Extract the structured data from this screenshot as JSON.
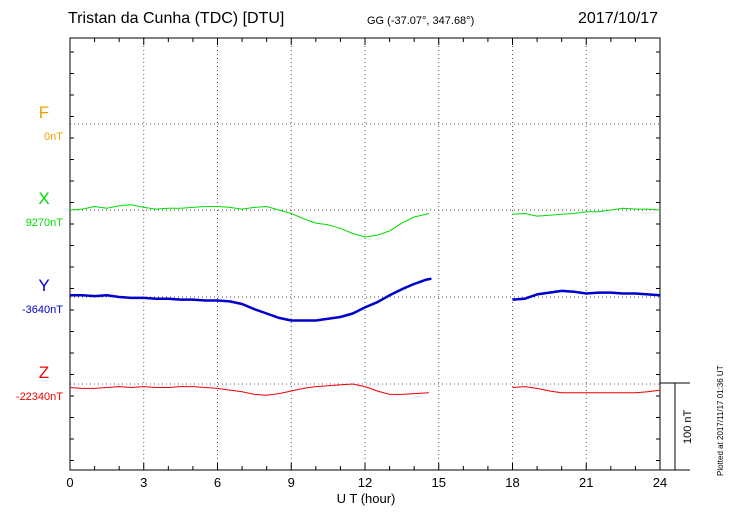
{
  "header": {
    "station": "Tristan da Cunha (TDC)  [DTU]",
    "coords": "GG (-37.07°, 347.68°)",
    "date": "2017/10/17"
  },
  "footer": {
    "plotted": "Plotted at 2017/11/17 01:36 UT",
    "scale": "100 nT"
  },
  "chart_data": {
    "type": "line",
    "xlabel": "U T (hour)",
    "xlim": [
      0,
      24
    ],
    "xticks": [
      "0",
      "3",
      "6",
      "9",
      "12",
      "15",
      "18",
      "21",
      "24"
    ],
    "grid": true,
    "scale_bar_nT": 100,
    "data_gap_hours": [
      14.7,
      17.9
    ],
    "series": [
      {
        "name": "F",
        "baseline": "0nT",
        "color": "#f5a000",
        "points": []
      },
      {
        "name": "X",
        "baseline": "9270nT",
        "color": "#00dd00",
        "stroke": 1,
        "points": [
          [
            0,
            9270
          ],
          [
            0.5,
            9271
          ],
          [
            1,
            9274
          ],
          [
            1.5,
            9272
          ],
          [
            2,
            9275
          ],
          [
            2.5,
            9276
          ],
          [
            3,
            9273
          ],
          [
            3.5,
            9271
          ],
          [
            4,
            9272
          ],
          [
            4.5,
            9272
          ],
          [
            5,
            9273
          ],
          [
            5.5,
            9274
          ],
          [
            6,
            9274
          ],
          [
            6.5,
            9273
          ],
          [
            7,
            9271
          ],
          [
            7.5,
            9273
          ],
          [
            8,
            9274
          ],
          [
            8.5,
            9270
          ],
          [
            9,
            9266
          ],
          [
            9.5,
            9260
          ],
          [
            10,
            9255
          ],
          [
            10.5,
            9253
          ],
          [
            11,
            9249
          ],
          [
            11.5,
            9243
          ],
          [
            12,
            9239
          ],
          [
            12.5,
            9241
          ],
          [
            13,
            9246
          ],
          [
            13.5,
            9255
          ],
          [
            14,
            9262
          ],
          [
            14.6,
            9266
          ],
          null,
          [
            18,
            9265
          ],
          [
            18.5,
            9266
          ],
          [
            19,
            9263
          ],
          [
            19.5,
            9264
          ],
          [
            20,
            9265
          ],
          [
            20.5,
            9266
          ],
          [
            21,
            9268
          ],
          [
            21.5,
            9268
          ],
          [
            22,
            9270
          ],
          [
            22.5,
            9272
          ],
          [
            23,
            9271
          ],
          [
            23.5,
            9271
          ],
          [
            24,
            9270
          ]
        ]
      },
      {
        "name": "Y",
        "baseline": "-3640nT",
        "color": "#0000cc",
        "stroke": 2.5,
        "points": [
          [
            0,
            -3638
          ],
          [
            0.5,
            -3638
          ],
          [
            1,
            -3639
          ],
          [
            1.5,
            -3638
          ],
          [
            2,
            -3640
          ],
          [
            2.5,
            -3641
          ],
          [
            3,
            -3641
          ],
          [
            3.5,
            -3642
          ],
          [
            4,
            -3642
          ],
          [
            4.5,
            -3643
          ],
          [
            5,
            -3643
          ],
          [
            5.5,
            -3644
          ],
          [
            6,
            -3644
          ],
          [
            6.5,
            -3645
          ],
          [
            7,
            -3648
          ],
          [
            7.5,
            -3654
          ],
          [
            8,
            -3659
          ],
          [
            8.5,
            -3664
          ],
          [
            9,
            -3667
          ],
          [
            9.5,
            -3667
          ],
          [
            10,
            -3667
          ],
          [
            10.5,
            -3665
          ],
          [
            11,
            -3663
          ],
          [
            11.5,
            -3659
          ],
          [
            12,
            -3652
          ],
          [
            12.5,
            -3646
          ],
          [
            13,
            -3638
          ],
          [
            13.5,
            -3631
          ],
          [
            14,
            -3625
          ],
          [
            14.5,
            -3620
          ],
          [
            14.7,
            -3619
          ],
          null,
          [
            18,
            -3643
          ],
          [
            18.5,
            -3642
          ],
          [
            19,
            -3637
          ],
          [
            19.5,
            -3635
          ],
          [
            20,
            -3633
          ],
          [
            20.5,
            -3634
          ],
          [
            21,
            -3636
          ],
          [
            21.5,
            -3635
          ],
          [
            22,
            -3635
          ],
          [
            22.5,
            -3636
          ],
          [
            23,
            -3636
          ],
          [
            23.5,
            -3637
          ],
          [
            24,
            -3638
          ]
        ]
      },
      {
        "name": "Z",
        "baseline": "-22340nT",
        "color": "#ee0000",
        "stroke": 1,
        "points": [
          [
            0,
            -22344
          ],
          [
            0.5,
            -22345
          ],
          [
            1,
            -22345
          ],
          [
            1.5,
            -22344
          ],
          [
            2,
            -22343
          ],
          [
            2.5,
            -22344
          ],
          [
            3,
            -22343
          ],
          [
            3.5,
            -22344
          ],
          [
            4,
            -22344
          ],
          [
            4.5,
            -22343
          ],
          [
            5,
            -22343
          ],
          [
            5.5,
            -22344
          ],
          [
            6,
            -22345
          ],
          [
            6.5,
            -22347
          ],
          [
            7,
            -22349
          ],
          [
            7.5,
            -22352
          ],
          [
            8,
            -22353
          ],
          [
            8.5,
            -22351
          ],
          [
            9,
            -22348
          ],
          [
            9.5,
            -22345
          ],
          [
            10,
            -22343
          ],
          [
            10.5,
            -22342
          ],
          [
            11,
            -22341
          ],
          [
            11.5,
            -22340
          ],
          [
            12,
            -22343
          ],
          [
            12.5,
            -22348
          ],
          [
            13,
            -22352
          ],
          [
            13.5,
            -22352
          ],
          [
            14,
            -22351
          ],
          [
            14.6,
            -22350
          ],
          null,
          [
            18,
            -22344
          ],
          [
            18.5,
            -22343
          ],
          [
            19,
            -22345
          ],
          [
            19.5,
            -22348
          ],
          [
            20,
            -22350
          ],
          [
            20.5,
            -22350
          ],
          [
            21,
            -22350
          ],
          [
            21.5,
            -22350
          ],
          [
            22,
            -22350
          ],
          [
            22.5,
            -22350
          ],
          [
            23,
            -22350
          ],
          [
            23.5,
            -22349
          ],
          [
            24,
            -22347
          ]
        ]
      }
    ]
  }
}
